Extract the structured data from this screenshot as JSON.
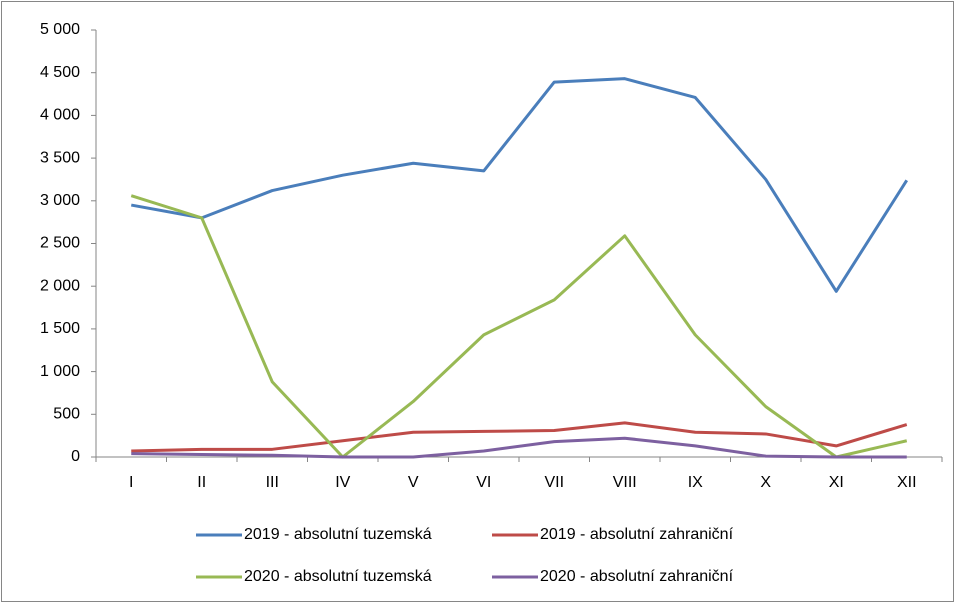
{
  "chart_data": {
    "type": "line",
    "categories": [
      "I",
      "II",
      "III",
      "IV",
      "V",
      "VI",
      "VII",
      "VIII",
      "IX",
      "X",
      "XI",
      "XII"
    ],
    "series": [
      {
        "name": "2019 - absolutní tuzemská",
        "color": "#4a7ebb",
        "values": [
          2950,
          2800,
          3120,
          3300,
          3440,
          3350,
          4390,
          4430,
          4210,
          3250,
          1940,
          3240
        ]
      },
      {
        "name": "2019 - absolutní zahraniční",
        "color": "#be4b48",
        "values": [
          70,
          90,
          90,
          190,
          290,
          300,
          310,
          400,
          290,
          270,
          130,
          380
        ]
      },
      {
        "name": "2020 - absolutní tuzemská",
        "color": "#98b954",
        "values": [
          3060,
          2800,
          880,
          0,
          650,
          1430,
          1840,
          2590,
          1430,
          590,
          0,
          190
        ]
      },
      {
        "name": "2020 - absolutní zahraniční",
        "color": "#7d60a0",
        "values": [
          40,
          30,
          20,
          0,
          0,
          70,
          180,
          220,
          130,
          10,
          0,
          0
        ]
      }
    ],
    "ylim": [
      0,
      5000
    ],
    "yticks": [
      0,
      500,
      {
        "value": 1000,
        "label": "1 000"
      },
      {
        "value": 1500,
        "label": "1 500"
      },
      {
        "value": 2000,
        "label": "2 000"
      },
      {
        "value": 2500,
        "label": "2 500"
      },
      {
        "value": 3000,
        "label": "3 000"
      },
      {
        "value": 3500,
        "label": "3 500"
      },
      {
        "value": 4000,
        "label": "4 000"
      },
      {
        "value": 4500,
        "label": "4 500"
      },
      {
        "value": 5000,
        "label": "5 000"
      }
    ],
    "grid": false,
    "legend": "bottom"
  }
}
